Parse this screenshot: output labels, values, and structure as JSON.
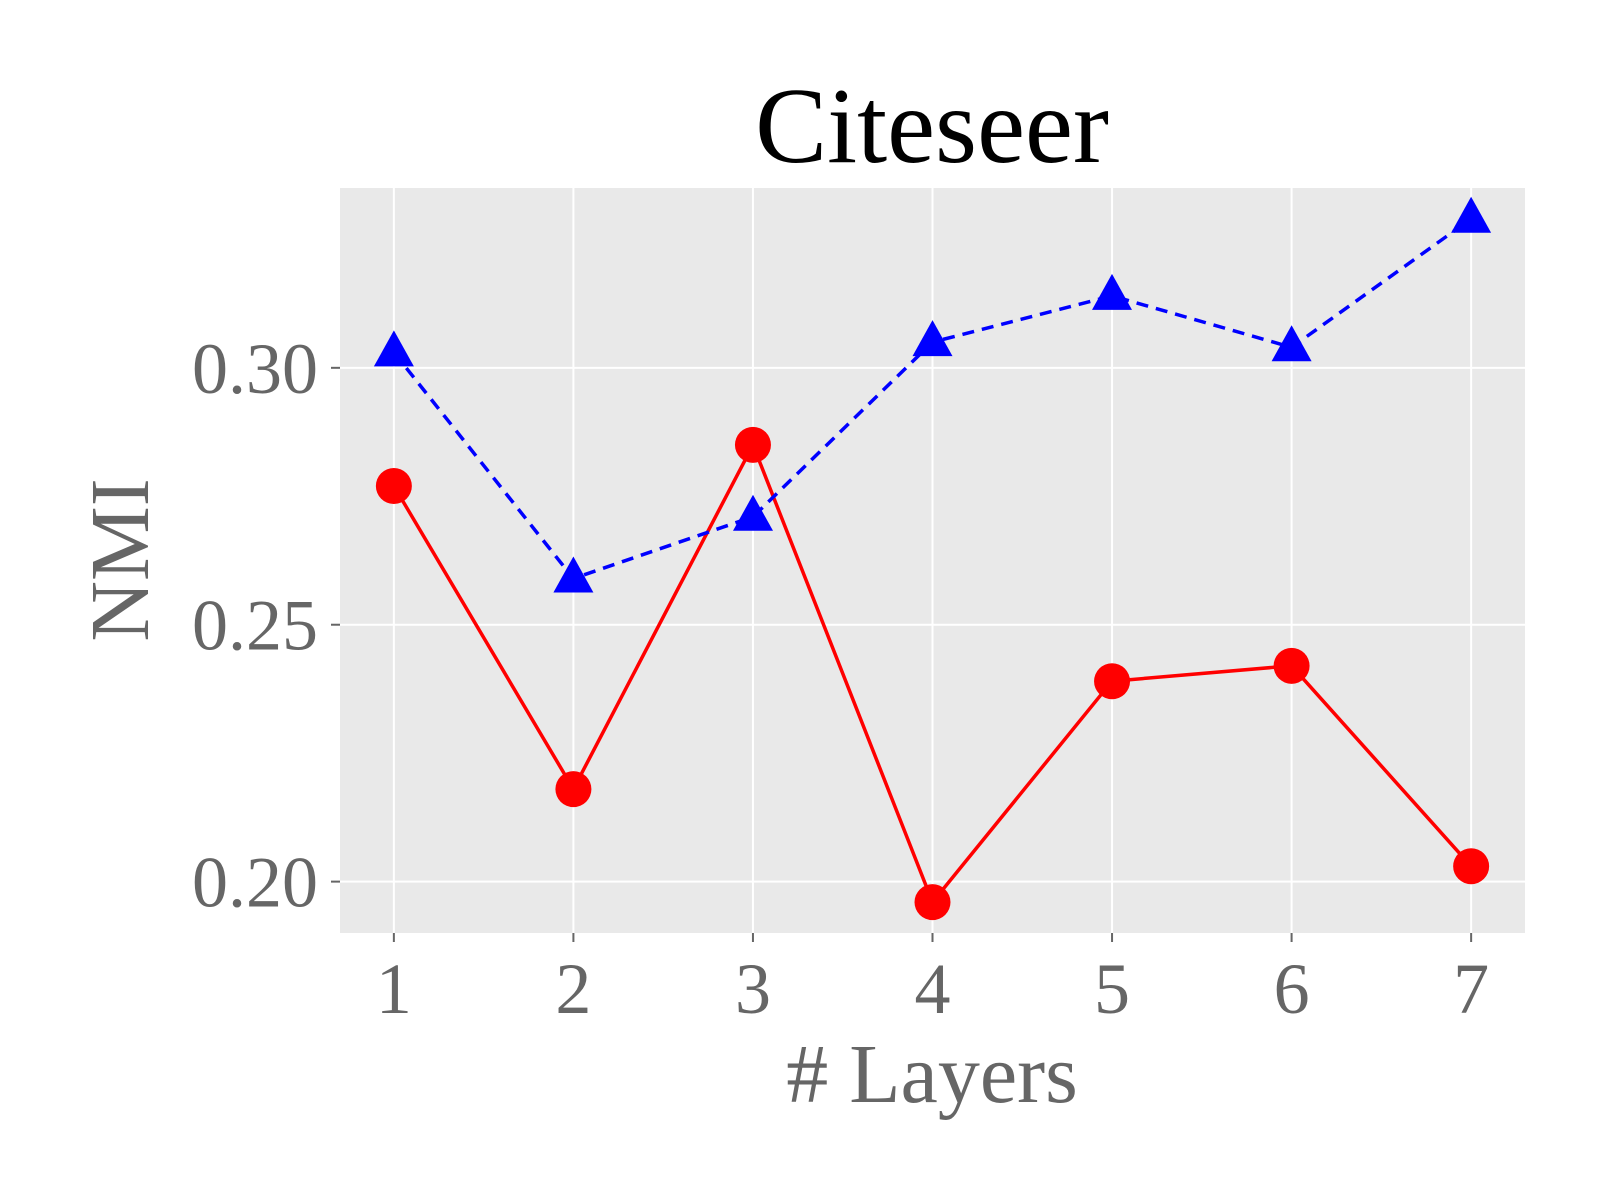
{
  "chart_data": {
    "type": "line",
    "title": "Citeseer",
    "xlabel": "# Layers",
    "ylabel": "NMI",
    "x": [
      1,
      2,
      3,
      4,
      5,
      6,
      7
    ],
    "xlim": [
      0.7,
      7.3
    ],
    "ylim": [
      0.19,
      0.335
    ],
    "xticks": [
      1,
      2,
      3,
      4,
      5,
      6,
      7
    ],
    "yticks": [
      0.2,
      0.25,
      0.3
    ],
    "ytick_labels": [
      "0.20",
      "0.25",
      "0.30"
    ],
    "grid": true,
    "legend": "none",
    "series": [
      {
        "values": [
          0.277,
          0.218,
          0.285,
          0.196,
          0.239,
          0.242,
          0.203
        ],
        "color": "#ff0000",
        "line_style": "solid",
        "marker": "circle"
      },
      {
        "values": [
          0.303,
          0.259,
          0.271,
          0.305,
          0.314,
          0.304,
          0.329
        ],
        "color": "#0000ff",
        "line_style": "dashed",
        "marker": "triangle"
      }
    ]
  },
  "colors": {
    "plot_background": "#e9e9e9",
    "grid": "#ffffff",
    "tick_text": "#666666"
  }
}
